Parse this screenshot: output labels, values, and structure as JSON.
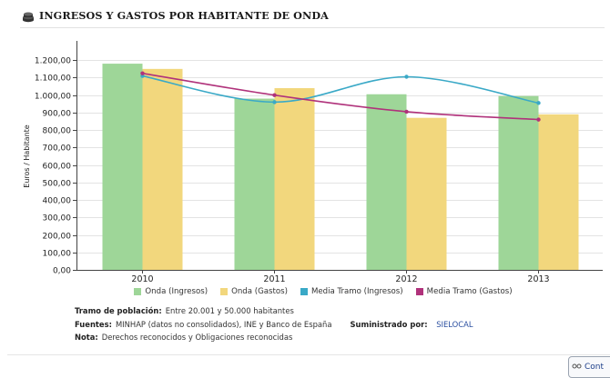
{
  "header": {
    "title": "INGRESOS Y GASTOS POR HABITANTE DE ONDA",
    "icon": "coins-icon"
  },
  "chart_data": {
    "type": "bar",
    "title": "INGRESOS Y GASTOS POR HABITANTE DE ONDA",
    "xlabel": "",
    "ylabel": "Euros / Habitante",
    "ylim": [
      0,
      1300
    ],
    "ytick_values": [
      0,
      100,
      200,
      300,
      400,
      500,
      600,
      700,
      800,
      900,
      1000,
      1100,
      1200
    ],
    "ytick_labels": [
      "0,00",
      "100,00",
      "200,00",
      "300,00",
      "400,00",
      "500,00",
      "600,00",
      "700,00",
      "800,00",
      "900,00",
      "1.000,00",
      "1.100,00",
      "1.200,00"
    ],
    "grid": true,
    "categories": [
      "2010",
      "2011",
      "2012",
      "2013"
    ],
    "series": [
      {
        "name": "Onda (Ingresos)",
        "type": "bar",
        "color": "#9ed698",
        "values": [
          1180,
          980,
          1005,
          995
        ]
      },
      {
        "name": "Onda (Gastos)",
        "type": "bar",
        "color": "#f2d77d",
        "values": [
          1150,
          1040,
          870,
          890
        ]
      },
      {
        "name": "Media Tramo (Ingresos)",
        "type": "line",
        "color": "#3aa9c7",
        "values": [
          1110,
          960,
          1105,
          955
        ]
      },
      {
        "name": "Media Tramo (Gastos)",
        "type": "line",
        "color": "#b0327b",
        "values": [
          1125,
          1000,
          905,
          860
        ]
      }
    ]
  },
  "notes": {
    "population_label": "Tramo de población:",
    "population_value": "Entre 20.001 y 50.000 habitantes",
    "sources_label": "Fuentes:",
    "sources_value": "MINHAP (datos no consolidados), INE y Banco de España",
    "supplied_label": "Suministrado por:",
    "supplied_value": "SIELOCAL",
    "note_label": "Nota:",
    "note_value": "Derechos reconocidos y Obligaciones reconocidas"
  },
  "corner_button": {
    "label": "Cont",
    "icon": "share-icon"
  }
}
